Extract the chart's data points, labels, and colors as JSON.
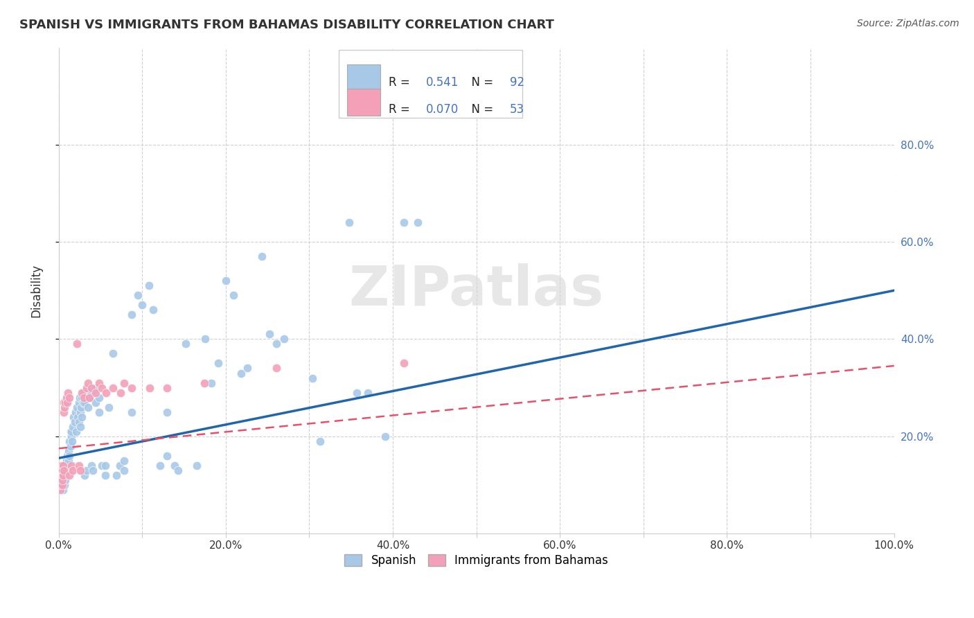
{
  "title": "SPANISH VS IMMIGRANTS FROM BAHAMAS DISABILITY CORRELATION CHART",
  "source": "Source: ZipAtlas.com",
  "ylabel": "Disability",
  "xlim": [
    0.0,
    1.0
  ],
  "ylim": [
    0.0,
    1.0
  ],
  "xtick_labels": [
    "0.0%",
    "",
    "20.0%",
    "",
    "40.0%",
    "",
    "60.0%",
    "",
    "80.0%",
    "",
    "100.0%"
  ],
  "xtick_vals": [
    0.0,
    0.1,
    0.2,
    0.3,
    0.4,
    0.5,
    0.6,
    0.7,
    0.8,
    0.9,
    1.0
  ],
  "ytick_labels": [
    "20.0%",
    "40.0%",
    "60.0%",
    "80.0%"
  ],
  "ytick_vals": [
    0.2,
    0.4,
    0.6,
    0.8
  ],
  "legend_R_blue": "0.541",
  "legend_N_blue": "92",
  "legend_R_pink": "0.070",
  "legend_N_pink": "53",
  "blue_color": "#a8c8e8",
  "pink_color": "#f4a0b8",
  "trendline_blue_color": "#2166ac",
  "trendline_pink_color": "#e8506a",
  "watermark": "ZIPatlas",
  "blue_scatter": [
    [
      0.003,
      0.12
    ],
    [
      0.004,
      0.1
    ],
    [
      0.005,
      0.09
    ],
    [
      0.005,
      0.11
    ],
    [
      0.006,
      0.12
    ],
    [
      0.007,
      0.13
    ],
    [
      0.007,
      0.1
    ],
    [
      0.008,
      0.14
    ],
    [
      0.008,
      0.11
    ],
    [
      0.009,
      0.15
    ],
    [
      0.01,
      0.16
    ],
    [
      0.01,
      0.13
    ],
    [
      0.011,
      0.14
    ],
    [
      0.012,
      0.15
    ],
    [
      0.012,
      0.17
    ],
    [
      0.013,
      0.19
    ],
    [
      0.013,
      0.16
    ],
    [
      0.014,
      0.21
    ],
    [
      0.014,
      0.18
    ],
    [
      0.015,
      0.2
    ],
    [
      0.015,
      0.21
    ],
    [
      0.016,
      0.19
    ],
    [
      0.017,
      0.22
    ],
    [
      0.018,
      0.24
    ],
    [
      0.019,
      0.23
    ],
    [
      0.02,
      0.25
    ],
    [
      0.021,
      0.21
    ],
    [
      0.022,
      0.26
    ],
    [
      0.023,
      0.24
    ],
    [
      0.024,
      0.27
    ],
    [
      0.024,
      0.23
    ],
    [
      0.025,
      0.28
    ],
    [
      0.026,
      0.25
    ],
    [
      0.026,
      0.22
    ],
    [
      0.027,
      0.26
    ],
    [
      0.028,
      0.28
    ],
    [
      0.028,
      0.24
    ],
    [
      0.029,
      0.27
    ],
    [
      0.03,
      0.29
    ],
    [
      0.031,
      0.27
    ],
    [
      0.031,
      0.12
    ],
    [
      0.033,
      0.13
    ],
    [
      0.035,
      0.26
    ],
    [
      0.037,
      0.28
    ],
    [
      0.039,
      0.29
    ],
    [
      0.039,
      0.14
    ],
    [
      0.041,
      0.13
    ],
    [
      0.044,
      0.27
    ],
    [
      0.044,
      0.3
    ],
    [
      0.048,
      0.25
    ],
    [
      0.048,
      0.28
    ],
    [
      0.052,
      0.14
    ],
    [
      0.056,
      0.14
    ],
    [
      0.056,
      0.12
    ],
    [
      0.06,
      0.26
    ],
    [
      0.065,
      0.37
    ],
    [
      0.069,
      0.12
    ],
    [
      0.073,
      0.14
    ],
    [
      0.078,
      0.15
    ],
    [
      0.078,
      0.13
    ],
    [
      0.087,
      0.25
    ],
    [
      0.087,
      0.45
    ],
    [
      0.095,
      0.49
    ],
    [
      0.1,
      0.47
    ],
    [
      0.108,
      0.51
    ],
    [
      0.113,
      0.46
    ],
    [
      0.121,
      0.14
    ],
    [
      0.13,
      0.16
    ],
    [
      0.13,
      0.25
    ],
    [
      0.139,
      0.14
    ],
    [
      0.143,
      0.13
    ],
    [
      0.152,
      0.39
    ],
    [
      0.165,
      0.14
    ],
    [
      0.175,
      0.4
    ],
    [
      0.183,
      0.31
    ],
    [
      0.191,
      0.35
    ],
    [
      0.2,
      0.52
    ],
    [
      0.209,
      0.49
    ],
    [
      0.218,
      0.33
    ],
    [
      0.226,
      0.34
    ],
    [
      0.243,
      0.57
    ],
    [
      0.252,
      0.41
    ],
    [
      0.261,
      0.39
    ],
    [
      0.27,
      0.4
    ],
    [
      0.304,
      0.32
    ],
    [
      0.313,
      0.19
    ],
    [
      0.348,
      0.64
    ],
    [
      0.357,
      0.29
    ],
    [
      0.37,
      0.29
    ],
    [
      0.391,
      0.2
    ],
    [
      0.413,
      0.64
    ],
    [
      0.43,
      0.64
    ]
  ],
  "pink_scatter": [
    [
      0.001,
      0.12
    ],
    [
      0.001,
      0.1
    ],
    [
      0.001,
      0.13
    ],
    [
      0.002,
      0.11
    ],
    [
      0.002,
      0.12
    ],
    [
      0.002,
      0.09
    ],
    [
      0.002,
      0.14
    ],
    [
      0.002,
      0.11
    ],
    [
      0.002,
      0.1
    ],
    [
      0.003,
      0.12
    ],
    [
      0.003,
      0.13
    ],
    [
      0.003,
      0.11
    ],
    [
      0.003,
      0.14
    ],
    [
      0.004,
      0.12
    ],
    [
      0.004,
      0.1
    ],
    [
      0.004,
      0.11
    ],
    [
      0.004,
      0.13
    ],
    [
      0.005,
      0.12
    ],
    [
      0.005,
      0.14
    ],
    [
      0.006,
      0.13
    ],
    [
      0.006,
      0.25
    ],
    [
      0.006,
      0.27
    ],
    [
      0.007,
      0.26
    ],
    [
      0.008,
      0.27
    ],
    [
      0.009,
      0.28
    ],
    [
      0.01,
      0.27
    ],
    [
      0.011,
      0.29
    ],
    [
      0.013,
      0.28
    ],
    [
      0.013,
      0.12
    ],
    [
      0.015,
      0.14
    ],
    [
      0.017,
      0.13
    ],
    [
      0.022,
      0.39
    ],
    [
      0.024,
      0.14
    ],
    [
      0.026,
      0.13
    ],
    [
      0.028,
      0.29
    ],
    [
      0.03,
      0.28
    ],
    [
      0.033,
      0.3
    ],
    [
      0.035,
      0.31
    ],
    [
      0.037,
      0.28
    ],
    [
      0.039,
      0.3
    ],
    [
      0.044,
      0.29
    ],
    [
      0.048,
      0.31
    ],
    [
      0.052,
      0.3
    ],
    [
      0.057,
      0.29
    ],
    [
      0.065,
      0.3
    ],
    [
      0.074,
      0.29
    ],
    [
      0.078,
      0.31
    ],
    [
      0.087,
      0.3
    ],
    [
      0.109,
      0.3
    ],
    [
      0.13,
      0.3
    ],
    [
      0.174,
      0.31
    ],
    [
      0.261,
      0.34
    ],
    [
      0.413,
      0.35
    ]
  ],
  "blue_trendline": [
    [
      0.0,
      0.155
    ],
    [
      1.0,
      0.5
    ]
  ],
  "pink_trendline": [
    [
      0.0,
      0.175
    ],
    [
      1.0,
      0.345
    ]
  ],
  "bg_color": "#ffffff",
  "grid_color": "#d0d0d0",
  "right_tick_color": "#4472c4"
}
